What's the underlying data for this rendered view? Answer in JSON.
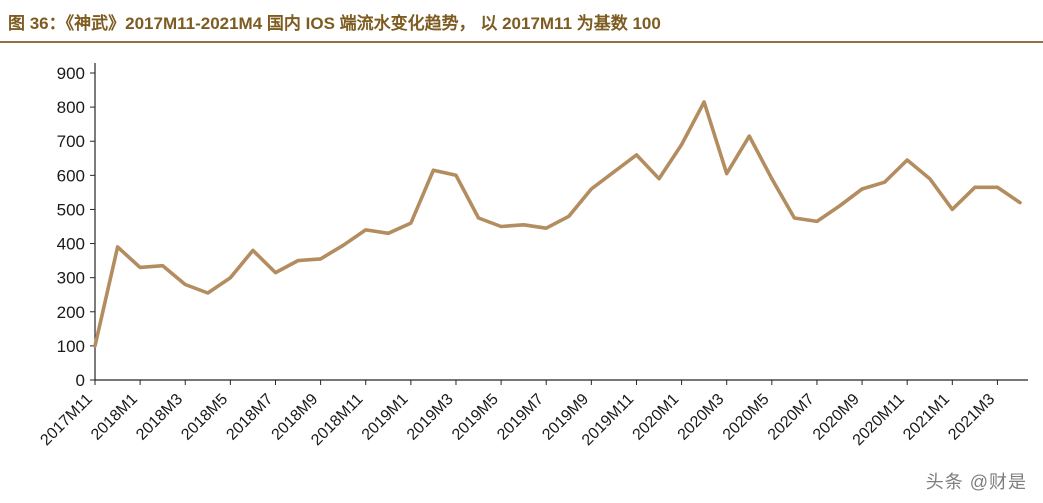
{
  "header": {
    "title": "图 36：《神武》2017M11-2021M4 国内 IOS 端流水变化趋势， 以 2017M11 为基数 100"
  },
  "watermark": "头条 @财是",
  "colors": {
    "title": "#7e5c21",
    "rule": "#8f7242",
    "line": "#b38d5f",
    "axis": "#262626",
    "tick_text": "#1a1a1a",
    "watermark": "#7f7f7f"
  },
  "chart_data": {
    "type": "line",
    "title": "《神武》2017M11-2021M4 国内 IOS 端流水变化趋势，以 2017M11 为基数 100",
    "categories": [
      "2017M11",
      "2017M12",
      "2018M1",
      "2018M2",
      "2018M3",
      "2018M4",
      "2018M5",
      "2018M6",
      "2018M7",
      "2018M8",
      "2018M9",
      "2018M10",
      "2018M11",
      "2018M12",
      "2019M1",
      "2019M2",
      "2019M3",
      "2019M4",
      "2019M5",
      "2019M6",
      "2019M7",
      "2019M8",
      "2019M9",
      "2019M10",
      "2019M11",
      "2019M12",
      "2020M1",
      "2020M2",
      "2020M3",
      "2020M4",
      "2020M5",
      "2020M6",
      "2020M7",
      "2020M8",
      "2020M9",
      "2020M10",
      "2020M11",
      "2020M12",
      "2021M1",
      "2021M2",
      "2021M3",
      "2021M4"
    ],
    "values": [
      100,
      390,
      330,
      335,
      280,
      255,
      300,
      380,
      315,
      350,
      355,
      395,
      440,
      430,
      460,
      615,
      600,
      475,
      450,
      455,
      445,
      480,
      560,
      610,
      660,
      590,
      690,
      815,
      605,
      715,
      590,
      475,
      465,
      510,
      560,
      580,
      645,
      590,
      500,
      565,
      565,
      520
    ],
    "xlabel": "",
    "ylabel": "",
    "ylim": [
      0,
      900
    ],
    "ytick_step": 100,
    "xtick_every": 2,
    "grid": false,
    "legend_position": "none",
    "line_color": "#b38d5f"
  }
}
